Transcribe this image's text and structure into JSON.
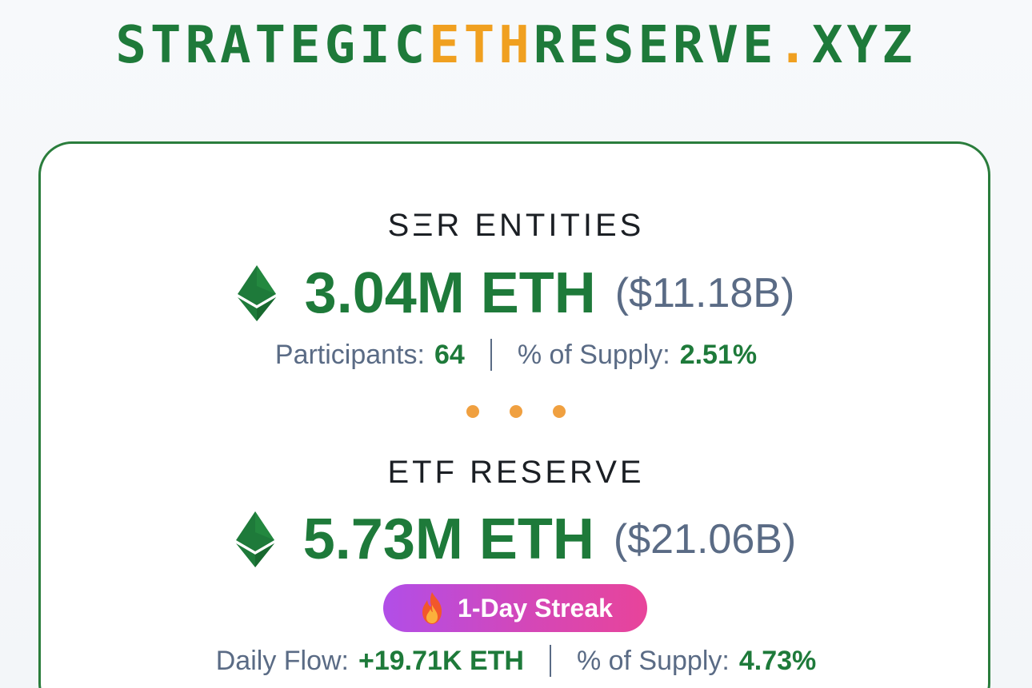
{
  "logo": {
    "part1": "STRATEGIC",
    "part2": "ETH",
    "part3": "RESERVE",
    "part4": ".",
    "part5": "XYZ"
  },
  "colors": {
    "brand_green": "#1e7a3a",
    "accent_orange": "#f0a020",
    "muted_text": "#5a6b85"
  },
  "ser": {
    "title": "SΞR ENTITIES",
    "amount": "3.04M ETH",
    "usd": "($11.18B)",
    "participants_label": "Participants:",
    "participants_value": "64",
    "supply_label": "% of Supply:",
    "supply_value": "2.51%"
  },
  "etf": {
    "title": "ETF RESERVE",
    "amount": "5.73M ETH",
    "usd": "($21.06B)",
    "streak_label": "1-Day Streak",
    "flow_label": "Daily Flow:",
    "flow_value": "+19.71K ETH",
    "supply_label": "% of Supply:",
    "supply_value": "4.73%"
  },
  "icons": {
    "eth": "ethereum-icon",
    "flame": "flame-icon"
  }
}
